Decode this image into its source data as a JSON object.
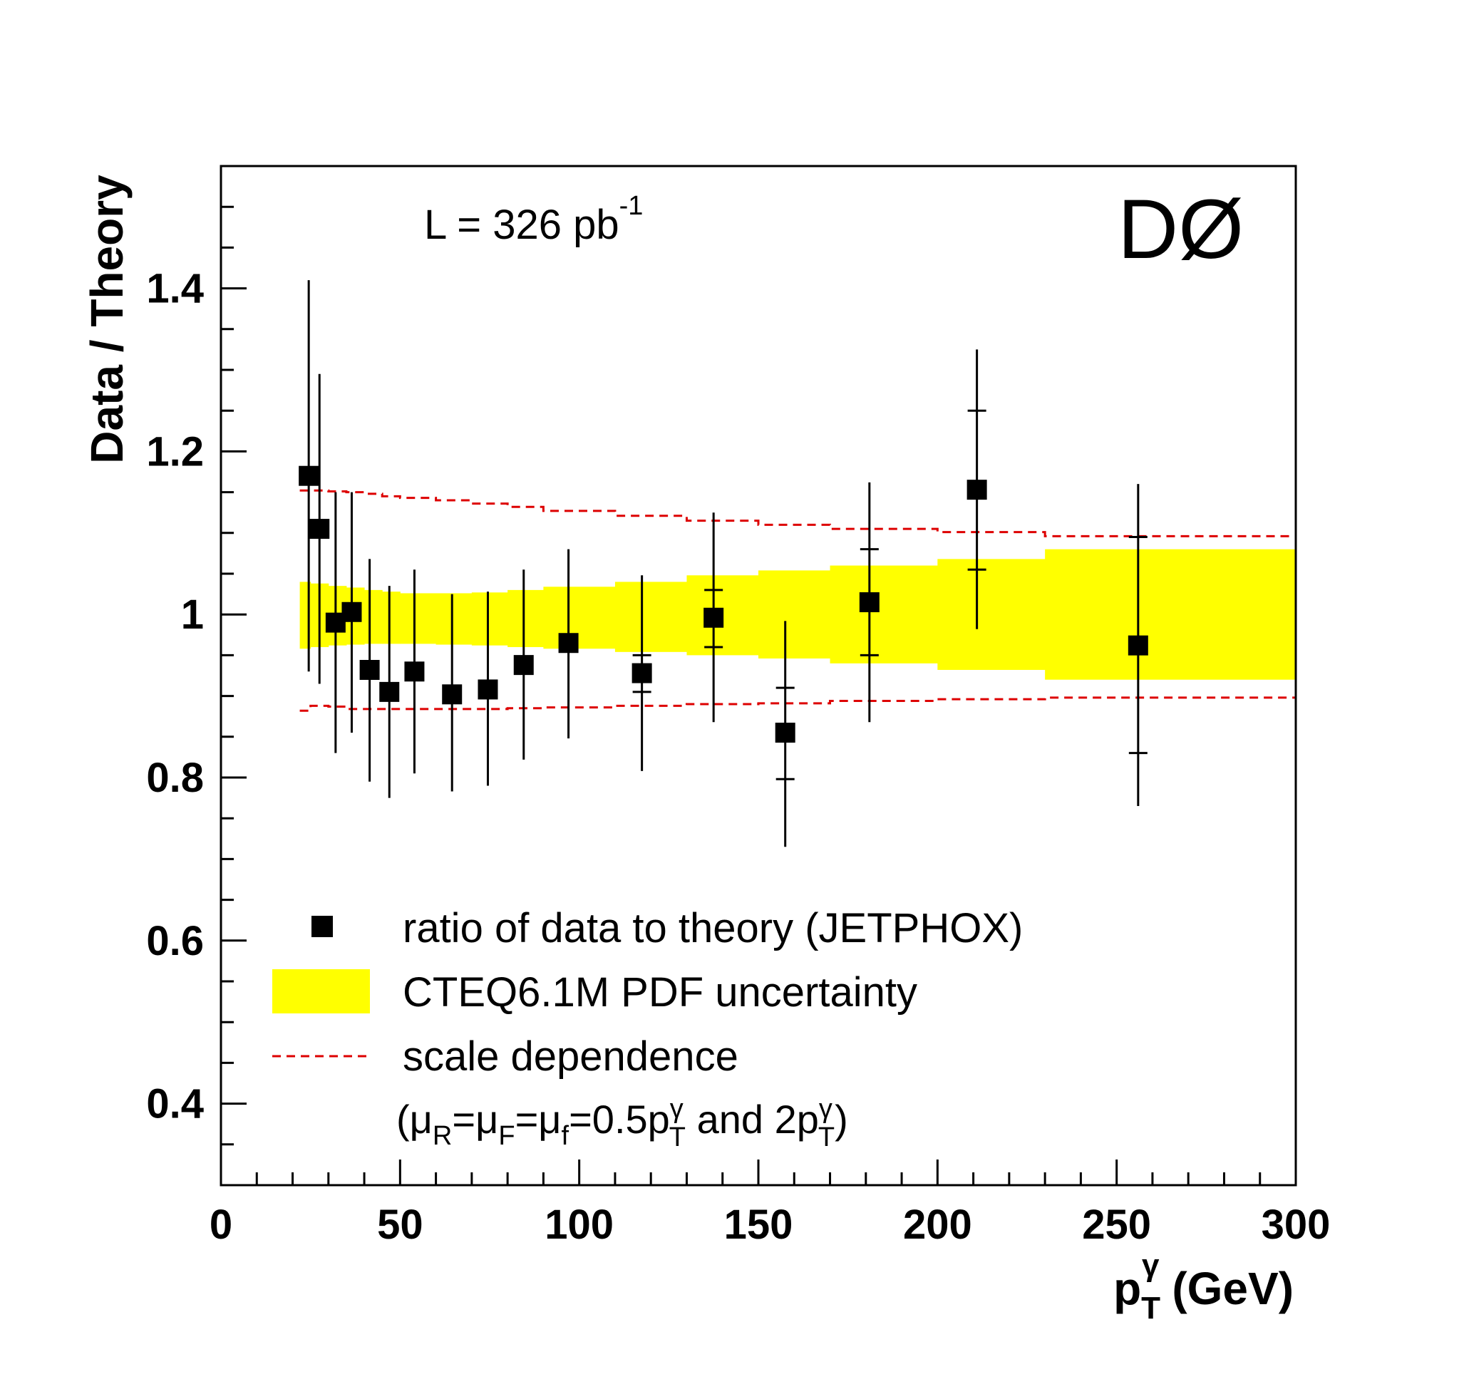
{
  "chart_data": {
    "type": "scatter",
    "title": "",
    "xlabel": {
      "main": "p",
      "sup": "γ",
      "sub": "T",
      "unit": " (GeV)"
    },
    "ylabel": "Data / Theory",
    "xlim": [
      0,
      300
    ],
    "ylim": [
      0.3,
      1.55
    ],
    "x_ticks": [
      "0",
      "50",
      "100",
      "150",
      "200",
      "250",
      "300"
    ],
    "y_ticks": [
      "0.4",
      "0.6",
      "0.8",
      "1",
      "1.2",
      "1.4"
    ],
    "experiment_label": "DØ",
    "luminosity": {
      "text": "L = 326 pb",
      "sup": "-1"
    },
    "legend": {
      "placement": "bottom-left",
      "data_label": "ratio of data to theory (JETPHOX)",
      "pdf_label": "CTEQ6.1M PDF uncertainty",
      "scale_label": "scale dependence",
      "scale_note": {
        "p1": "(μ",
        "s1": "R",
        "p2": "=μ",
        "s2": "F",
        "p3": "=μ",
        "s3": "f",
        "p4": "=0.5p",
        "sup4": "γ",
        "s4": "T",
        "p5": " and 2p",
        "sup5": "γ",
        "s5": "T",
        "p6": ")"
      }
    },
    "colors": {
      "pdf_band": "#ffff00",
      "scale_lines": "#dd0000",
      "points": "#000000"
    },
    "points": [
      {
        "x": 24.5,
        "y": 1.17,
        "stat_lo": 1.17,
        "stat_hi": 1.17,
        "tot_lo": 0.93,
        "tot_hi": 1.41
      },
      {
        "x": 27.5,
        "y": 1.105,
        "stat_lo": 1.105,
        "stat_hi": 1.105,
        "tot_lo": 0.915,
        "tot_hi": 1.295
      },
      {
        "x": 32.0,
        "y": 0.99,
        "stat_lo": 0.99,
        "stat_hi": 0.99,
        "tot_lo": 0.83,
        "tot_hi": 1.15
      },
      {
        "x": 36.5,
        "y": 1.003,
        "stat_lo": 1.003,
        "stat_hi": 1.003,
        "tot_lo": 0.855,
        "tot_hi": 1.15
      },
      {
        "x": 41.5,
        "y": 0.932,
        "stat_lo": 0.932,
        "stat_hi": 0.932,
        "tot_lo": 0.795,
        "tot_hi": 1.068
      },
      {
        "x": 47.0,
        "y": 0.905,
        "stat_lo": 0.905,
        "stat_hi": 0.905,
        "tot_lo": 0.775,
        "tot_hi": 1.035
      },
      {
        "x": 54.0,
        "y": 0.93,
        "stat_lo": 0.93,
        "stat_hi": 0.93,
        "tot_lo": 0.805,
        "tot_hi": 1.055
      },
      {
        "x": 64.5,
        "y": 0.902,
        "stat_lo": 0.902,
        "stat_hi": 0.902,
        "tot_lo": 0.783,
        "tot_hi": 1.025
      },
      {
        "x": 74.5,
        "y": 0.908,
        "stat_lo": 0.908,
        "stat_hi": 0.908,
        "tot_lo": 0.79,
        "tot_hi": 1.028
      },
      {
        "x": 84.5,
        "y": 0.938,
        "stat_lo": 0.938,
        "stat_hi": 0.938,
        "tot_lo": 0.822,
        "tot_hi": 1.055
      },
      {
        "x": 97.0,
        "y": 0.965,
        "stat_lo": 0.955,
        "stat_hi": 0.975,
        "tot_lo": 0.848,
        "tot_hi": 1.08
      },
      {
        "x": 117.5,
        "y": 0.928,
        "stat_lo": 0.905,
        "stat_hi": 0.95,
        "tot_lo": 0.808,
        "tot_hi": 1.048
      },
      {
        "x": 137.5,
        "y": 0.996,
        "stat_lo": 0.96,
        "stat_hi": 1.03,
        "tot_lo": 0.868,
        "tot_hi": 1.125
      },
      {
        "x": 157.5,
        "y": 0.855,
        "stat_lo": 0.798,
        "stat_hi": 0.91,
        "tot_lo": 0.715,
        "tot_hi": 0.992
      },
      {
        "x": 181.0,
        "y": 1.015,
        "stat_lo": 0.95,
        "stat_hi": 1.08,
        "tot_lo": 0.868,
        "tot_hi": 1.162
      },
      {
        "x": 211.0,
        "y": 1.153,
        "stat_lo": 1.055,
        "stat_hi": 1.25,
        "tot_lo": 0.982,
        "tot_hi": 1.325
      },
      {
        "x": 256.0,
        "y": 0.962,
        "stat_lo": 0.83,
        "stat_hi": 1.095,
        "tot_lo": 0.765,
        "tot_hi": 1.16
      }
    ],
    "pdf_band": [
      {
        "x0": 22,
        "x1": 25,
        "lo": 0.958,
        "hi": 1.04
      },
      {
        "x0": 25,
        "x1": 30,
        "lo": 0.96,
        "hi": 1.038
      },
      {
        "x0": 30,
        "x1": 35,
        "lo": 0.962,
        "hi": 1.035
      },
      {
        "x0": 35,
        "x1": 40,
        "lo": 0.963,
        "hi": 1.033
      },
      {
        "x0": 40,
        "x1": 45,
        "lo": 0.964,
        "hi": 1.03
      },
      {
        "x0": 45,
        "x1": 50,
        "lo": 0.964,
        "hi": 1.028
      },
      {
        "x0": 50,
        "x1": 60,
        "lo": 0.964,
        "hi": 1.026
      },
      {
        "x0": 60,
        "x1": 70,
        "lo": 0.963,
        "hi": 1.026
      },
      {
        "x0": 70,
        "x1": 80,
        "lo": 0.962,
        "hi": 1.027
      },
      {
        "x0": 80,
        "x1": 90,
        "lo": 0.96,
        "hi": 1.03
      },
      {
        "x0": 90,
        "x1": 110,
        "lo": 0.958,
        "hi": 1.034
      },
      {
        "x0": 110,
        "x1": 130,
        "lo": 0.954,
        "hi": 1.04
      },
      {
        "x0": 130,
        "x1": 150,
        "lo": 0.95,
        "hi": 1.048
      },
      {
        "x0": 150,
        "x1": 170,
        "lo": 0.946,
        "hi": 1.054
      },
      {
        "x0": 170,
        "x1": 200,
        "lo": 0.94,
        "hi": 1.06
      },
      {
        "x0": 200,
        "x1": 230,
        "lo": 0.932,
        "hi": 1.068
      },
      {
        "x0": 230,
        "x1": 300,
        "lo": 0.92,
        "hi": 1.08
      }
    ],
    "scale_band": [
      {
        "x0": 22,
        "x1": 25,
        "lo": 0.882,
        "hi": 1.152
      },
      {
        "x0": 25,
        "x1": 30,
        "lo": 0.888,
        "hi": 1.152
      },
      {
        "x0": 30,
        "x1": 35,
        "lo": 0.887,
        "hi": 1.151
      },
      {
        "x0": 35,
        "x1": 40,
        "lo": 0.884,
        "hi": 1.15
      },
      {
        "x0": 40,
        "x1": 45,
        "lo": 0.884,
        "hi": 1.148
      },
      {
        "x0": 45,
        "x1": 50,
        "lo": 0.884,
        "hi": 1.145
      },
      {
        "x0": 50,
        "x1": 60,
        "lo": 0.884,
        "hi": 1.143
      },
      {
        "x0": 60,
        "x1": 70,
        "lo": 0.884,
        "hi": 1.14
      },
      {
        "x0": 70,
        "x1": 80,
        "lo": 0.884,
        "hi": 1.136
      },
      {
        "x0": 80,
        "x1": 90,
        "lo": 0.885,
        "hi": 1.132
      },
      {
        "x0": 90,
        "x1": 110,
        "lo": 0.886,
        "hi": 1.127
      },
      {
        "x0": 110,
        "x1": 130,
        "lo": 0.888,
        "hi": 1.121
      },
      {
        "x0": 130,
        "x1": 150,
        "lo": 0.89,
        "hi": 1.115
      },
      {
        "x0": 150,
        "x1": 170,
        "lo": 0.891,
        "hi": 1.11
      },
      {
        "x0": 170,
        "x1": 200,
        "lo": 0.894,
        "hi": 1.105
      },
      {
        "x0": 200,
        "x1": 230,
        "lo": 0.896,
        "hi": 1.101
      },
      {
        "x0": 230,
        "x1": 300,
        "lo": 0.898,
        "hi": 1.096
      }
    ]
  }
}
